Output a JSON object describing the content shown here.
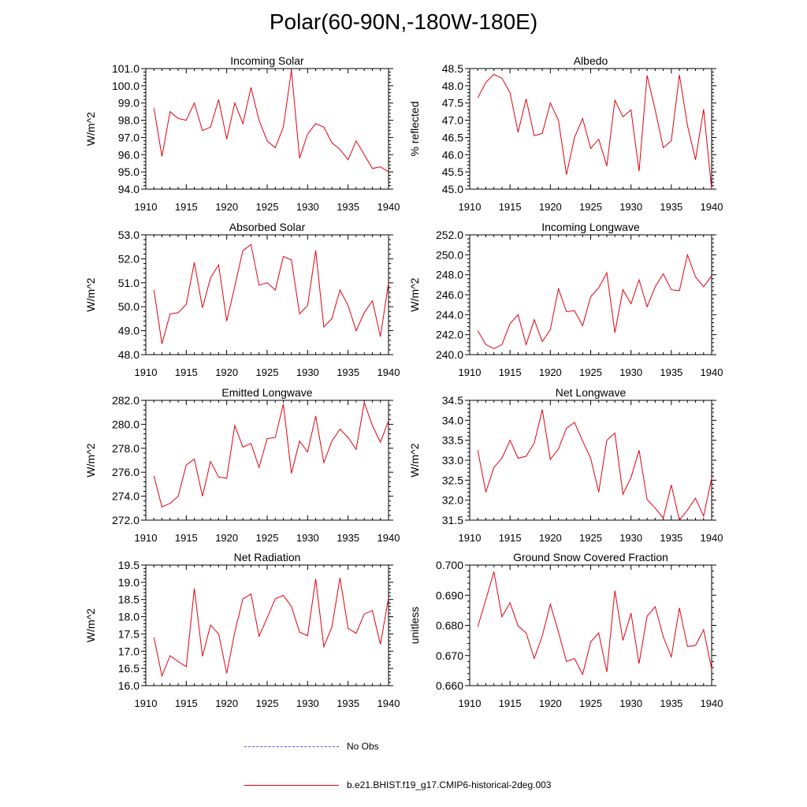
{
  "title": "Polar(60-90N,-180W-180E)",
  "legend": {
    "obs_label": "No Obs",
    "obs_color": "#4a5adb",
    "model_label": "b.e21.BHIST.f19_g17.CMIP6-historical-2deg.003",
    "model_color": "#e3000f"
  },
  "chart_data": [
    {
      "type": "line",
      "title": "Incoming Solar",
      "ylabel": "W/m^2",
      "xlim": [
        1910,
        1940
      ],
      "ylim": [
        94.0,
        101.0
      ],
      "xticks": [
        "1910",
        "1915",
        "1920",
        "1925",
        "1930",
        "1935",
        "1940"
      ],
      "yticks": [
        "94.0",
        "95.0",
        "96.0",
        "97.0",
        "98.0",
        "99.0",
        "100.0",
        "101.0"
      ],
      "x": [
        1911,
        1912,
        1913,
        1914,
        1915,
        1916,
        1917,
        1918,
        1919,
        1920,
        1921,
        1922,
        1923,
        1924,
        1925,
        1926,
        1927,
        1928,
        1929,
        1930,
        1931,
        1932,
        1933,
        1934,
        1935,
        1936,
        1937,
        1938,
        1939,
        1940
      ],
      "series": [
        {
          "values": [
            98.7,
            95.9,
            98.5,
            98.1,
            98.0,
            99.0,
            97.4,
            97.6,
            99.2,
            96.9,
            99.0,
            97.8,
            99.9,
            98.0,
            96.8,
            96.4,
            97.6,
            100.9,
            95.8,
            97.2,
            97.8,
            97.6,
            96.7,
            96.3,
            95.7,
            96.8,
            96.0,
            95.2,
            95.3,
            95.0
          ]
        }
      ]
    },
    {
      "type": "line",
      "title": "Albedo",
      "ylabel": "% reflected",
      "xlim": [
        1910,
        1940
      ],
      "ylim": [
        45.0,
        48.5
      ],
      "xticks": [
        "1910",
        "1915",
        "1920",
        "1925",
        "1930",
        "1935",
        "1940"
      ],
      "yticks": [
        "45.0",
        "45.5",
        "46.0",
        "46.5",
        "47.0",
        "47.5",
        "48.0",
        "48.5"
      ],
      "x": [
        1911,
        1912,
        1913,
        1914,
        1915,
        1916,
        1917,
        1918,
        1919,
        1920,
        1921,
        1922,
        1923,
        1924,
        1925,
        1926,
        1927,
        1928,
        1929,
        1930,
        1931,
        1932,
        1933,
        1934,
        1935,
        1936,
        1937,
        1938,
        1939,
        1940
      ],
      "series": [
        {
          "values": [
            47.65,
            48.1,
            48.33,
            48.22,
            47.8,
            46.65,
            47.62,
            46.55,
            46.62,
            47.5,
            47.0,
            45.42,
            46.5,
            47.05,
            46.18,
            46.45,
            45.67,
            47.58,
            47.1,
            47.3,
            45.52,
            48.3,
            47.3,
            46.2,
            46.4,
            48.32,
            46.85,
            45.85,
            47.32,
            45.0
          ]
        }
      ]
    },
    {
      "type": "line",
      "title": "Absorbed Solar",
      "ylabel": "W/m^2",
      "xlim": [
        1910,
        1940
      ],
      "ylim": [
        48.0,
        53.0
      ],
      "xticks": [
        "1910",
        "1915",
        "1920",
        "1925",
        "1930",
        "1935",
        "1940"
      ],
      "yticks": [
        "48.0",
        "49.0",
        "50.0",
        "51.0",
        "52.0",
        "53.0"
      ],
      "x": [
        1911,
        1912,
        1913,
        1914,
        1915,
        1916,
        1917,
        1918,
        1919,
        1920,
        1921,
        1922,
        1923,
        1924,
        1925,
        1926,
        1927,
        1928,
        1929,
        1930,
        1931,
        1932,
        1933,
        1934,
        1935,
        1936,
        1937,
        1938,
        1939,
        1940
      ],
      "series": [
        {
          "values": [
            50.7,
            48.45,
            49.7,
            49.75,
            50.1,
            51.85,
            49.95,
            51.2,
            51.75,
            49.4,
            50.85,
            52.35,
            52.6,
            50.9,
            51.0,
            50.7,
            52.1,
            51.95,
            49.7,
            50.05,
            52.35,
            49.15,
            49.5,
            50.7,
            50.05,
            49.0,
            49.75,
            50.25,
            48.75,
            51.0
          ]
        }
      ]
    },
    {
      "type": "line",
      "title": "Incoming Longwave",
      "ylabel": "W/m^2",
      "xlim": [
        1910,
        1940
      ],
      "ylim": [
        240.0,
        252.0
      ],
      "xticks": [
        "1910",
        "1915",
        "1920",
        "1925",
        "1930",
        "1935",
        "1940"
      ],
      "yticks": [
        "240.0",
        "242.0",
        "244.0",
        "246.0",
        "248.0",
        "250.0",
        "252.0"
      ],
      "x": [
        1911,
        1912,
        1913,
        1914,
        1915,
        1916,
        1917,
        1918,
        1919,
        1920,
        1921,
        1922,
        1923,
        1924,
        1925,
        1926,
        1927,
        1928,
        1929,
        1930,
        1931,
        1932,
        1933,
        1934,
        1935,
        1936,
        1937,
        1938,
        1939,
        1940
      ],
      "series": [
        {
          "values": [
            242.4,
            241.0,
            240.6,
            241.0,
            243.1,
            244.0,
            241.0,
            243.5,
            241.3,
            242.5,
            246.6,
            244.3,
            244.4,
            242.9,
            245.8,
            246.7,
            248.2,
            242.2,
            246.5,
            245.1,
            247.5,
            244.8,
            246.8,
            248.1,
            246.5,
            246.4,
            250.0,
            247.8,
            246.8,
            247.9
          ]
        }
      ]
    },
    {
      "type": "line",
      "title": "Emitted Longwave",
      "ylabel": "W/m^2",
      "xlim": [
        1910,
        1940
      ],
      "ylim": [
        272.0,
        282.0
      ],
      "xticks": [
        "1910",
        "1915",
        "1920",
        "1925",
        "1930",
        "1935",
        "1940"
      ],
      "yticks": [
        "272.0",
        "274.0",
        "276.0",
        "278.0",
        "280.0",
        "282.0"
      ],
      "x": [
        1911,
        1912,
        1913,
        1914,
        1915,
        1916,
        1917,
        1918,
        1919,
        1920,
        1921,
        1922,
        1923,
        1924,
        1925,
        1926,
        1927,
        1928,
        1929,
        1930,
        1931,
        1932,
        1933,
        1934,
        1935,
        1936,
        1937,
        1938,
        1939,
        1940
      ],
      "series": [
        {
          "values": [
            275.7,
            273.1,
            273.4,
            274.0,
            276.6,
            277.1,
            274.0,
            276.9,
            275.6,
            275.5,
            279.9,
            278.1,
            278.4,
            276.4,
            278.8,
            278.9,
            281.7,
            275.9,
            278.6,
            277.7,
            280.7,
            276.8,
            278.6,
            279.6,
            278.9,
            277.9,
            281.8,
            279.9,
            278.5,
            280.3
          ]
        }
      ]
    },
    {
      "type": "line",
      "title": "Net Longwave",
      "ylabel": "W/m^2",
      "xlim": [
        1910,
        1940
      ],
      "ylim": [
        31.5,
        34.5
      ],
      "xticks": [
        "1910",
        "1915",
        "1920",
        "1925",
        "1930",
        "1935",
        "1940"
      ],
      "yticks": [
        "31.5",
        "32.0",
        "32.5",
        "33.0",
        "33.5",
        "34.0",
        "34.5"
      ],
      "x": [
        1911,
        1912,
        1913,
        1914,
        1915,
        1916,
        1917,
        1918,
        1919,
        1920,
        1921,
        1922,
        1923,
        1924,
        1925,
        1926,
        1927,
        1928,
        1929,
        1930,
        1931,
        1932,
        1933,
        1934,
        1935,
        1936,
        1937,
        1938,
        1939,
        1940
      ],
      "series": [
        {
          "values": [
            33.25,
            32.2,
            32.82,
            33.05,
            33.5,
            33.05,
            33.1,
            33.43,
            34.27,
            33.02,
            33.28,
            33.8,
            33.95,
            33.48,
            33.05,
            32.2,
            33.5,
            33.68,
            32.15,
            32.57,
            33.25,
            32.02,
            31.8,
            31.55,
            32.38,
            31.5,
            31.75,
            32.05,
            31.6,
            32.55
          ]
        }
      ]
    },
    {
      "type": "line",
      "title": "Net Radiation",
      "ylabel": "W/m^2",
      "xlim": [
        1910,
        1940
      ],
      "ylim": [
        16.0,
        19.5
      ],
      "xticks": [
        "1910",
        "1915",
        "1920",
        "1925",
        "1930",
        "1935",
        "1940"
      ],
      "yticks": [
        "16.0",
        "16.5",
        "17.0",
        "17.5",
        "18.0",
        "18.5",
        "19.0",
        "19.5"
      ],
      "x": [
        1911,
        1912,
        1913,
        1914,
        1915,
        1916,
        1917,
        1918,
        1919,
        1920,
        1921,
        1922,
        1923,
        1924,
        1925,
        1926,
        1927,
        1928,
        1929,
        1930,
        1931,
        1932,
        1933,
        1934,
        1935,
        1936,
        1937,
        1938,
        1939,
        1940
      ],
      "series": [
        {
          "values": [
            17.4,
            16.28,
            16.87,
            16.7,
            16.55,
            18.82,
            16.85,
            17.76,
            17.5,
            16.36,
            17.55,
            18.52,
            18.66,
            17.43,
            17.97,
            18.52,
            18.62,
            18.3,
            17.55,
            17.45,
            19.1,
            17.13,
            17.7,
            19.13,
            17.66,
            17.52,
            18.08,
            18.18,
            17.2,
            18.55
          ]
        }
      ]
    },
    {
      "type": "line",
      "title": "Ground Snow Covered Fraction",
      "ylabel": "unitless",
      "xlim": [
        1910,
        1940
      ],
      "ylim": [
        0.66,
        0.7
      ],
      "xticks": [
        "1910",
        "1915",
        "1920",
        "1925",
        "1930",
        "1935",
        "1940"
      ],
      "yticks": [
        "0.660",
        "0.670",
        "0.680",
        "0.690",
        "0.700"
      ],
      "x": [
        1911,
        1912,
        1913,
        1914,
        1915,
        1916,
        1917,
        1918,
        1919,
        1920,
        1921,
        1922,
        1923,
        1924,
        1925,
        1926,
        1927,
        1928,
        1929,
        1930,
        1931,
        1932,
        1933,
        1934,
        1935,
        1936,
        1937,
        1938,
        1939,
        1940
      ],
      "series": [
        {
          "values": [
            0.6795,
            0.6885,
            0.6978,
            0.6828,
            0.6875,
            0.6798,
            0.6775,
            0.669,
            0.6765,
            0.687,
            0.6778,
            0.668,
            0.669,
            0.6637,
            0.6745,
            0.6775,
            0.6645,
            0.6915,
            0.675,
            0.684,
            0.6673,
            0.683,
            0.6862,
            0.6762,
            0.6695,
            0.6858,
            0.673,
            0.6733,
            0.6785,
            0.6655
          ]
        }
      ]
    }
  ]
}
